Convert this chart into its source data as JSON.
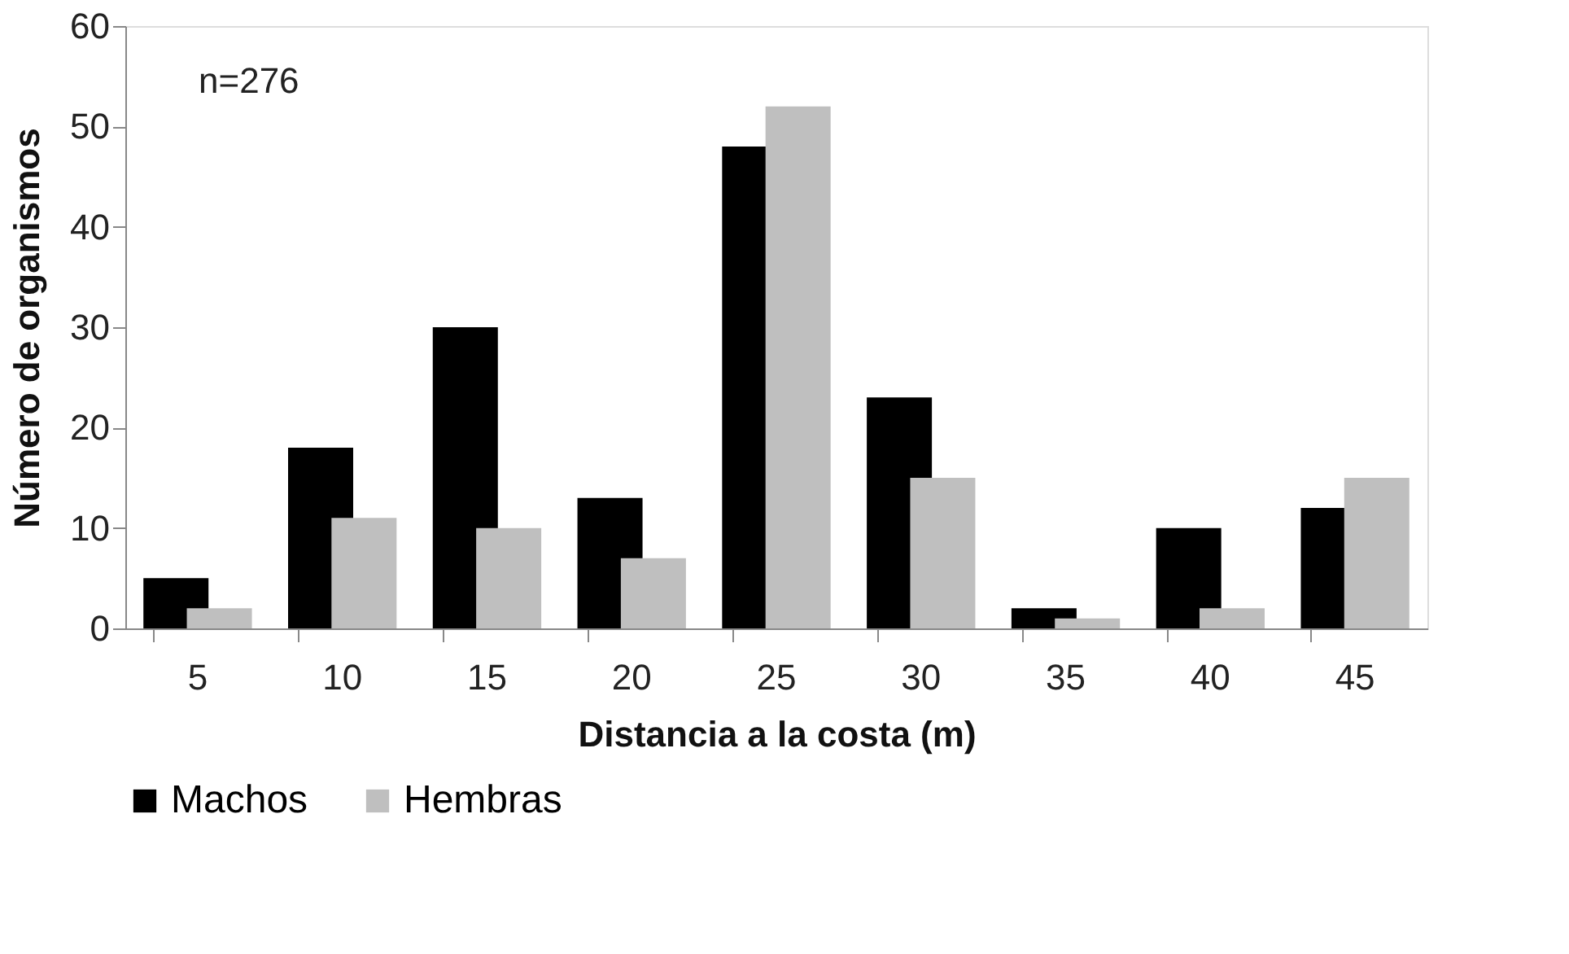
{
  "chart_data": {
    "type": "bar",
    "xlabel": "Distancia a la costa (m)",
    "ylabel": "Número de organismos",
    "categories": [
      "5",
      "10",
      "15",
      "20",
      "25",
      "30",
      "35",
      "40",
      "45"
    ],
    "series": [
      {
        "name": "Machos",
        "color": "#000000",
        "values": [
          5,
          18,
          30,
          13,
          48,
          23,
          2,
          10,
          12
        ]
      },
      {
        "name": "Hembras",
        "color": "#bfbfbf",
        "values": [
          2,
          11,
          10,
          7,
          52,
          15,
          1,
          2,
          15
        ]
      }
    ],
    "ylim": [
      0,
      60
    ],
    "yticks": [
      0,
      10,
      20,
      30,
      40,
      50,
      60
    ],
    "annotations": [
      "n=276"
    ],
    "grid": false,
    "legend": "bottom"
  }
}
